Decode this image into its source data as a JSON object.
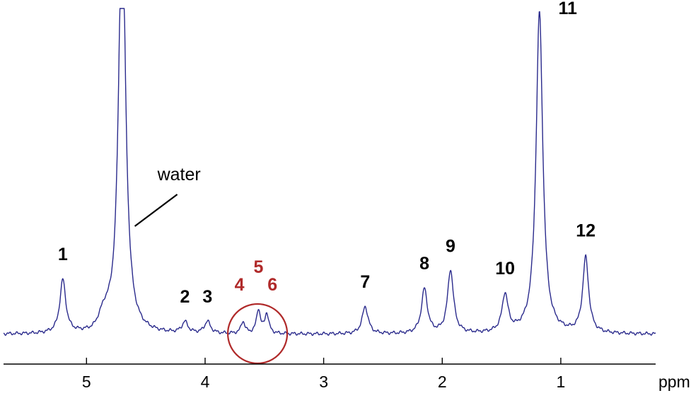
{
  "chart_data": {
    "type": "line",
    "title": "",
    "xlabel": "ppm",
    "ylabel": "",
    "x_reversed": true,
    "xlim": [
      5.7,
      0.2
    ],
    "ylim": [
      0,
      1
    ],
    "x_ticks": [
      5,
      4,
      3,
      2,
      1
    ],
    "grid": false,
    "line_color": "#2a2a8c",
    "highlight_color": "#b02a2a",
    "baseline": 0.035,
    "water_peak": {
      "center": 4.7,
      "height": 1.25,
      "width": 0.035,
      "label": "water"
    },
    "peaks": [
      {
        "label": "1",
        "center": 5.2,
        "height": 0.155,
        "width": 0.03
      },
      {
        "label": "2",
        "center": 4.17,
        "height": 0.032,
        "width": 0.03
      },
      {
        "label": "3",
        "center": 3.98,
        "height": 0.035,
        "width": 0.03
      },
      {
        "label": "4",
        "center": 3.68,
        "height": 0.035,
        "width": 0.02,
        "highlight": true
      },
      {
        "label": "5",
        "center": 3.55,
        "height": 0.07,
        "width": 0.02,
        "highlight": true
      },
      {
        "label": "6",
        "center": 3.48,
        "height": 0.058,
        "width": 0.02,
        "highlight": true
      },
      {
        "label": "7",
        "center": 2.65,
        "height": 0.08,
        "width": 0.03
      },
      {
        "label": "8",
        "center": 2.15,
        "height": 0.13,
        "width": 0.03
      },
      {
        "label": "9",
        "center": 1.93,
        "height": 0.185,
        "width": 0.03
      },
      {
        "label": "10",
        "center": 1.47,
        "height": 0.11,
        "width": 0.03
      },
      {
        "label": "11",
        "center": 1.18,
        "height": 0.94,
        "width": 0.034
      },
      {
        "label": "12",
        "center": 0.79,
        "height": 0.22,
        "width": 0.03
      }
    ]
  }
}
